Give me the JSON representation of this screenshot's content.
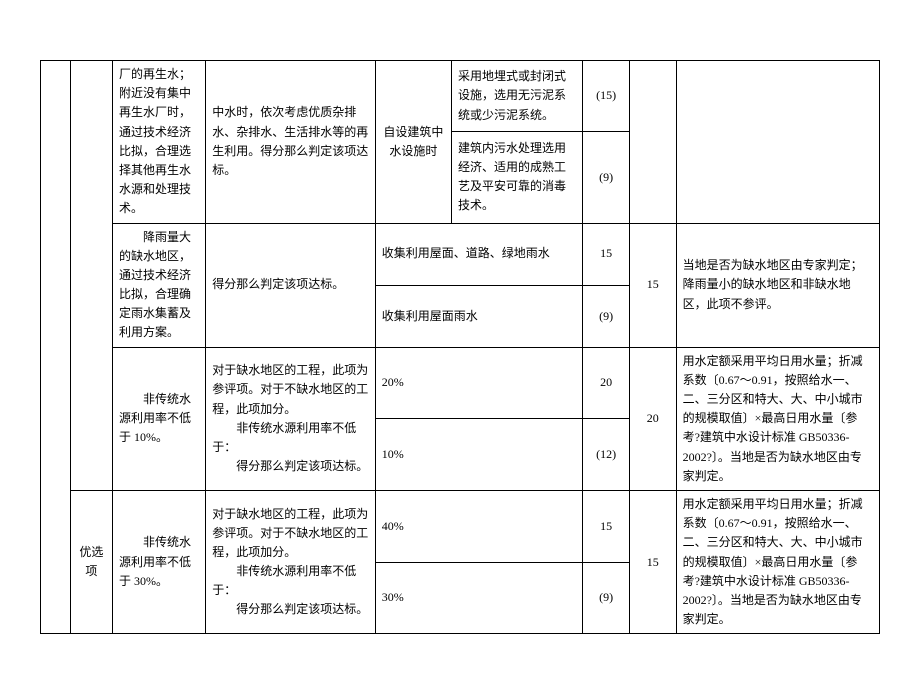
{
  "col_widths": {
    "c1": "3.5%",
    "c2": "5%",
    "c3": "11%",
    "c4": "20%",
    "c5": "9%",
    "c6": "15.5%",
    "c7": "5.5%",
    "c8": "5.5%",
    "c9": "24%"
  },
  "r1": {
    "c3": "厂的再生水；附近没有集中再生水厂时，通过技术经济比拟，合理选择其他再生水水源和处理技术。",
    "c4": "中水时，依次考虑优质杂排水、杂排水、生活排水等的再生利用。得分那么判定该项达标。",
    "c5": "自设建筑中水设施时",
    "c6a": "采用地埋式或封闭式设施，选用无污泥系统或少污泥系统。",
    "c7a": "(15)",
    "c6b": "建筑内污水处理选用经济、适用的成熟工艺及平安可靠的消毒技术。",
    "c7b": "(9)"
  },
  "r2": {
    "c3": "　　降雨量大的缺水地区，通过技术经济比拟，合理确定雨水集蓄及利用方案。",
    "c4": "得分那么判定该项达标。",
    "c56a": "收集利用屋面、道路、绿地雨水",
    "c7a": "15",
    "c56b": "收集利用屋面雨水",
    "c7b": "(9)",
    "c8": "15",
    "c9": "当地是否为缺水地区由专家判定；降雨量小的缺水地区和非缺水地区，此项不参评。"
  },
  "r3": {
    "c3": "　　非传统水源利用率不低于 10%。",
    "c4_line1": "对于缺水地区的工程，此项为参评项。对于不缺水地区的工程，此项加分。",
    "c4_line2": "　　非传统水源利用率不低于：",
    "c4_line3": "　　得分那么判定该项达标。",
    "c56a": "20%",
    "c7a": "20",
    "c56b": "10%",
    "c7b": "(12)",
    "c8": "20",
    "c9": "用水定额采用平均日用水量；折减系数〔0.67～0.91，按照给水一、二、三分区和特大、大、中小城市的规模取值〕×最高日用水量〔参考?建筑中水设计标准 GB50336-2002?〕。当地是否为缺水地区由专家判定。"
  },
  "r4": {
    "c2": "优选项",
    "c3": "　　非传统水源利用率不低于 30%。",
    "c4_line1": "对于缺水地区的工程，此项为参评项。对于不缺水地区的工程，此项加分。",
    "c4_line2": "　　非传统水源利用率不低于：",
    "c4_line3": "　　得分那么判定该项达标。",
    "c56a": "40%",
    "c7a": "15",
    "c56b": "30%",
    "c7b": "(9)",
    "c8": "15",
    "c9": "用水定额采用平均日用水量；折减系数〔0.67～0.91，按照给水一、二、三分区和特大、大、中小城市的规模取值〕×最高日用水量〔参考?建筑中水设计标准 GB50336-2002?〕。当地是否为缺水地区由专家判定。"
  }
}
